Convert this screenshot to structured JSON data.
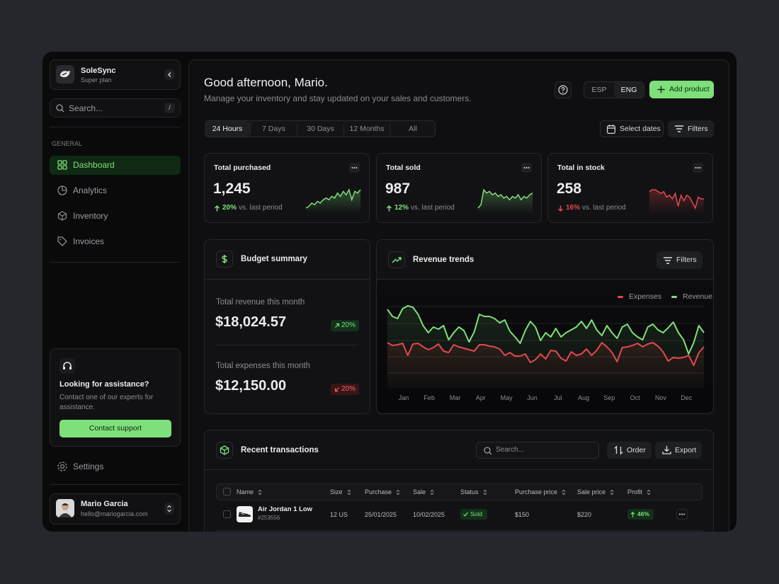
{
  "sidebar": {
    "brand": {
      "name": "SoleSync",
      "plan": "Super plan"
    },
    "search_placeholder": "Search...",
    "search_shortcut": "/",
    "section": "GENERAL",
    "nav": [
      "Dashboard",
      "Analytics",
      "Inventory",
      "Invoices"
    ],
    "help": {
      "title": "Looking for assistance?",
      "text": "Contact one of our experts for assistance.",
      "button": "Contact support"
    },
    "settings": "Settings",
    "user": {
      "name": "Mario Garcia",
      "email": "hello@mariogarcia.com"
    }
  },
  "header": {
    "title": "Good afternoon, Mario.",
    "subtitle": "Manage your inventory and stay updated on your sales and customers.",
    "languages": [
      "ESP",
      "ENG"
    ],
    "add_button": "Add product"
  },
  "periods": [
    "24 Hours",
    "7 Days",
    "30 Days",
    "12 Months",
    "All"
  ],
  "select_dates": "Select dates",
  "filters": "Filters",
  "stats": [
    {
      "title": "Total purchased",
      "value": "1,245",
      "change": "20%",
      "direction": "up",
      "note": "vs. last period",
      "color": "#7ee07a",
      "trend": [
        3,
        4,
        6,
        5,
        7,
        6,
        8,
        9,
        8,
        10,
        9,
        12,
        10,
        13,
        11,
        14,
        8,
        13,
        12,
        14
      ]
    },
    {
      "title": "Total sold",
      "value": "987",
      "change": "12%",
      "direction": "up",
      "note": "vs. last period",
      "color": "#7ee07a",
      "trend": [
        4,
        6,
        15,
        13,
        14,
        12,
        13,
        11,
        12,
        10,
        11,
        9,
        11,
        10,
        12,
        9,
        11,
        10,
        12,
        13
      ]
    },
    {
      "title": "Total in stock",
      "value": "258",
      "change": "16%",
      "direction": "down",
      "note": "vs. last period",
      "color": "#e5484d",
      "trend": [
        14,
        15,
        15,
        14,
        13,
        14,
        11,
        12,
        10,
        13,
        6,
        12,
        9,
        12,
        11,
        8,
        5,
        11,
        10,
        10
      ]
    }
  ],
  "budget": {
    "title": "Budget summary",
    "items": [
      {
        "label": "Total revenue this month",
        "value": "$18,024.57",
        "change": "20%",
        "direction": "up"
      },
      {
        "label": "Total expenses this month",
        "value": "$12,150.00",
        "change": "20%",
        "direction": "down"
      }
    ]
  },
  "revenue": {
    "title": "Revenue trends",
    "filters": "Filters",
    "months": [
      "Jan",
      "Feb",
      "Mar",
      "Apr",
      "May",
      "Jun",
      "Jul",
      "Aug",
      "Sep",
      "Oct",
      "Nov",
      "Dec"
    ],
    "ylim": [
      0,
      118
    ],
    "series": [
      {
        "name": "Expenses",
        "color": "#e5484d",
        "values": [
          64,
          60,
          61,
          63,
          46,
          62,
          63,
          58,
          54,
          57,
          62,
          52,
          50,
          61,
          58,
          56,
          54,
          52,
          61,
          61,
          59,
          58,
          55,
          46,
          50,
          45,
          45,
          48,
          36,
          40,
          48,
          41,
          53,
          52,
          42,
          38,
          51,
          46,
          48,
          55,
          46,
          53,
          64,
          58,
          50,
          37,
          57,
          58,
          60,
          63,
          58,
          62,
          64,
          59,
          51,
          38,
          43,
          42,
          43,
          46,
          32,
          50,
          58
        ]
      },
      {
        "name": "Revenue",
        "color": "#7ee07a",
        "values": [
          111,
          101,
          98,
          112,
          116,
          114,
          104,
          88,
          78,
          86,
          83,
          88,
          68,
          78,
          86,
          81,
          65,
          79,
          104,
          101,
          101,
          98,
          92,
          96,
          80,
          72,
          63,
          81,
          94,
          86,
          67,
          78,
          72,
          84,
          72,
          78,
          82,
          86,
          94,
          84,
          96,
          82,
          74,
          88,
          78,
          70,
          86,
          90,
          78,
          72,
          68,
          86,
          90,
          82,
          78,
          85,
          93,
          78,
          68,
          48,
          64,
          88,
          78
        ]
      }
    ]
  },
  "transactions": {
    "title": "Recent transactions",
    "search_placeholder": "Search...",
    "buttons": [
      "Order",
      "Export"
    ],
    "columns": [
      "Name",
      "Size",
      "Purchase",
      "Sale",
      "Status",
      "Purchase price",
      "Sale price",
      "Profit"
    ],
    "rows": [
      {
        "name": "Air Jordan 1 Low",
        "id": "#253556",
        "cells": [
          "12 US",
          "25/01/2025",
          "10/02/2025",
          "Sold",
          "$150",
          "$220",
          "46%"
        ]
      }
    ]
  }
}
